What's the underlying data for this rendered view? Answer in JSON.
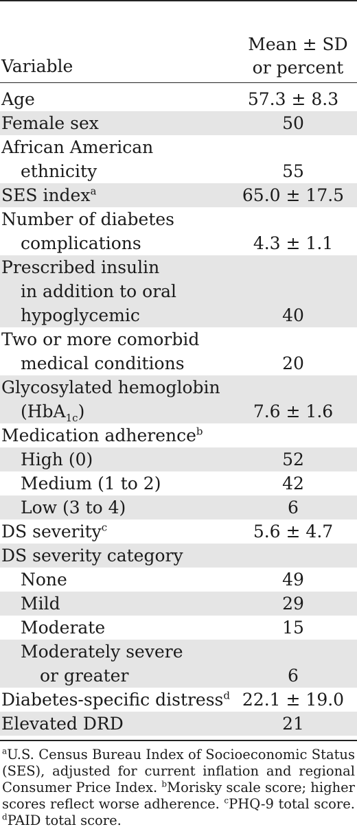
{
  "header": {
    "variable": "Variable",
    "mean_line1": "Mean ± SD",
    "mean_line2": "or percent"
  },
  "rows": {
    "age": {
      "label": "Age",
      "value": "57.3 ± 8.3"
    },
    "female": {
      "label": "Female sex",
      "value": "50"
    },
    "aa": {
      "label1": "African American",
      "label2": "ethnicity",
      "value": "55"
    },
    "ses": {
      "label": "SES index",
      "mark": "a",
      "value": "65.0 ± 17.5"
    },
    "ndc": {
      "label1": "Number of diabetes",
      "label2": "complications",
      "value": "4.3 ± 1.1"
    },
    "ins": {
      "label1": "Prescribed insulin",
      "label2": "in addition to oral",
      "label3": "hypoglycemic",
      "value": "40"
    },
    "como": {
      "label1": "Two or more comorbid",
      "label2": "medical conditions",
      "value": "20"
    },
    "hba": {
      "label1": "Glycosylated hemoglobin",
      "label2_pre": "(HbA",
      "label2_sub": "1c",
      "label2_post": ")",
      "value": "7.6 ± 1.6"
    },
    "adh": {
      "label": "Medication adherence",
      "mark": "b"
    },
    "high": {
      "label": "High (0)",
      "value": "52"
    },
    "medium": {
      "label": "Medium (1 to 2)",
      "value": "42"
    },
    "low": {
      "label": "Low (3 to 4)",
      "value": "6"
    },
    "dss": {
      "label": "DS severity",
      "mark": "c",
      "value": "5.6 ± 4.7"
    },
    "dsc": {
      "label": "DS severity category"
    },
    "none": {
      "label": "None",
      "value": "49"
    },
    "mild": {
      "label": "Mild",
      "value": "29"
    },
    "moderate": {
      "label": "Moderate",
      "value": "15"
    },
    "modsev": {
      "label1": "Moderately severe",
      "label2": "or greater",
      "value": "6"
    },
    "dsd": {
      "label": "Diabetes-specific distress",
      "mark": "d",
      "value": "22.1 ± 19.0"
    },
    "drd": {
      "label": "Elevated DRD",
      "value": "21"
    }
  },
  "footnotes": {
    "a_mark": "a",
    "a_text": "U.S. Census Bureau Index of Socioeconomic Status (SES), adjusted for current inflation and regional Consumer Price Index. ",
    "b_mark": "b",
    "b_text": "Morisky scale score; higher scores reflect worse adherence. ",
    "c_mark": "c",
    "c_text": "PHQ-9 total score. ",
    "d_mark": "d",
    "d_text": "PAID total score."
  }
}
